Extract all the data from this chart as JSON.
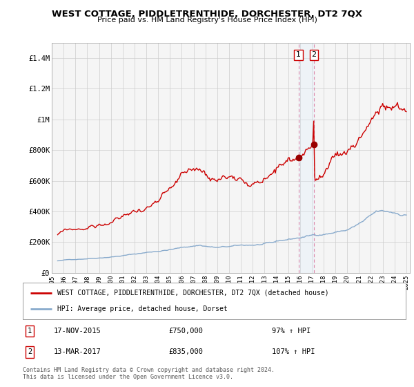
{
  "title": "WEST COTTAGE, PIDDLETRENTHIDE, DORCHESTER, DT2 7QX",
  "subtitle": "Price paid vs. HM Land Registry's House Price Index (HPI)",
  "title_fontsize": 10,
  "subtitle_fontsize": 8.5,
  "bg_color": "#ffffff",
  "grid_color": "#cccccc",
  "plot_bg": "#f5f5f5",
  "house_color": "#cc0000",
  "hpi_color": "#88aacc",
  "vline_color": "#dd88aa",
  "span_color": "#ddeeff",
  "marker_color": "#990000",
  "ylim": [
    0,
    1500000
  ],
  "yticks": [
    0,
    200000,
    400000,
    600000,
    800000,
    1000000,
    1200000,
    1400000
  ],
  "ytick_labels": [
    "£0",
    "£200K",
    "£400K",
    "£600K",
    "£800K",
    "£1M",
    "£1.2M",
    "£1.4M"
  ],
  "xmin_year": 1995.5,
  "xmax_year": 2025.3,
  "xtick_years": [
    1995,
    1996,
    1997,
    1998,
    1999,
    2000,
    2001,
    2002,
    2003,
    2004,
    2005,
    2006,
    2007,
    2008,
    2009,
    2010,
    2011,
    2012,
    2013,
    2014,
    2015,
    2016,
    2017,
    2018,
    2019,
    2020,
    2021,
    2022,
    2023,
    2024,
    2025
  ],
  "sale1_year": 2015.88,
  "sale1_price": 750000,
  "sale1_label": "1",
  "sale2_year": 2017.19,
  "sale2_price": 835000,
  "sale2_label": "2",
  "legend_house": "WEST COTTAGE, PIDDLETRENTHIDE, DORCHESTER, DT2 7QX (detached house)",
  "legend_hpi": "HPI: Average price, detached house, Dorset",
  "table_entries": [
    {
      "num": "1",
      "date": "17-NOV-2015",
      "price": "£750,000",
      "pct": "97% ↑ HPI"
    },
    {
      "num": "2",
      "date": "13-MAR-2017",
      "price": "£835,000",
      "pct": "107% ↑ HPI"
    }
  ],
  "footer": "Contains HM Land Registry data © Crown copyright and database right 2024.\nThis data is licensed under the Open Government Licence v3.0."
}
